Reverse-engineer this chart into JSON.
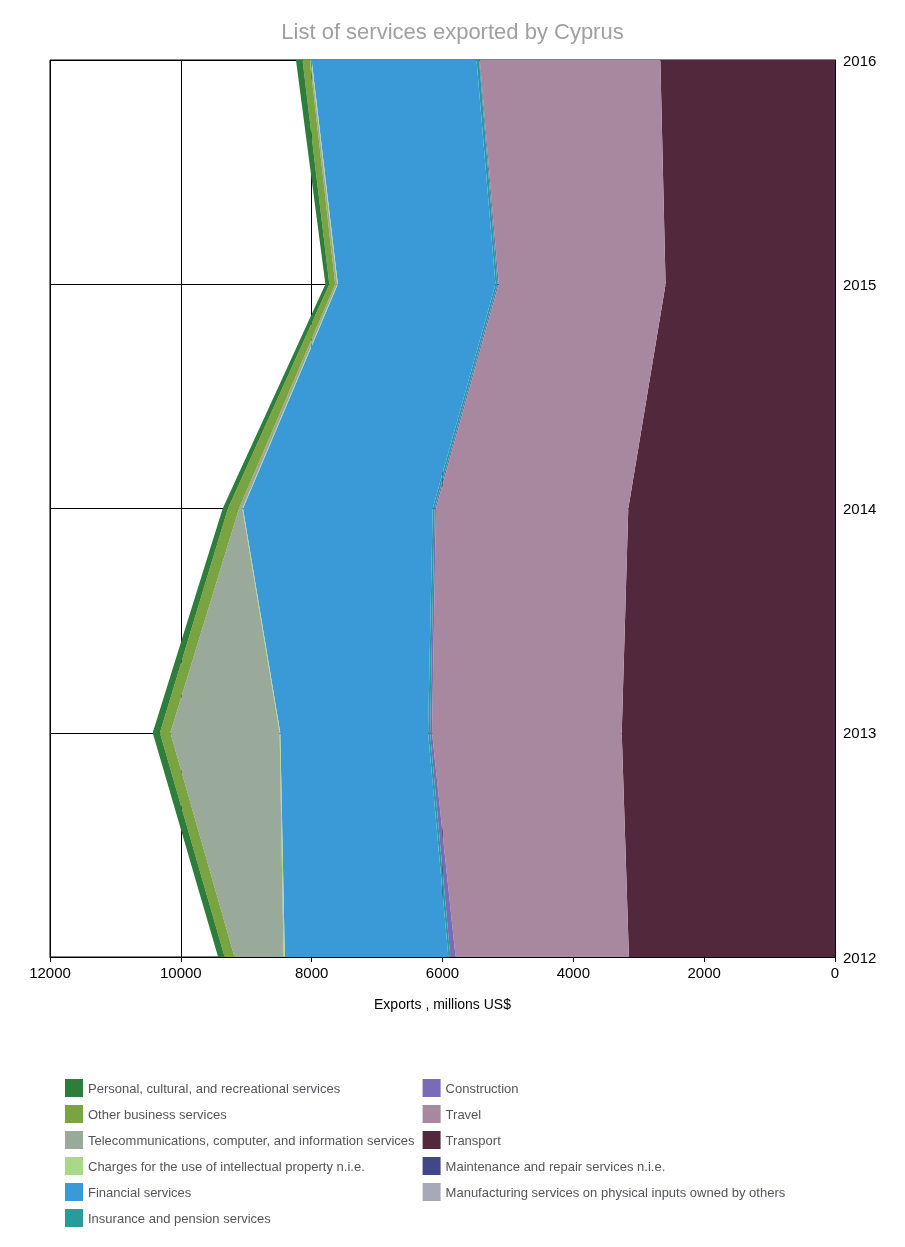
{
  "chart_data": {
    "type": "area",
    "title": "List of services exported by Cyprus",
    "xlabel": "Exports , millions US$",
    "stacked": true,
    "orientation": "horizontal",
    "categories": [
      "2016",
      "2015",
      "2014",
      "2013",
      "2012"
    ],
    "xlim": [
      12000,
      0
    ],
    "xticks": [
      0,
      2000,
      4000,
      6000,
      8000,
      10000,
      12000
    ],
    "grid": true,
    "legend": "bottom",
    "series": [
      {
        "name": "Manufacturing services on physical inputs owned by others",
        "color": "#a8a8b8",
        "values": [
          null,
          null,
          null,
          null,
          null
        ]
      },
      {
        "name": "Maintenance and repair services n.i.e.",
        "color": "#404888",
        "values": [
          null,
          null,
          null,
          null,
          null
        ]
      },
      {
        "name": "Transport",
        "color": "#52283c",
        "values": [
          2670,
          2590,
          3160,
          3260,
          3150
        ]
      },
      {
        "name": "Travel",
        "color": "#a8889e",
        "values": [
          2760,
          2550,
          2940,
          2900,
          2650
        ]
      },
      {
        "name": "Construction",
        "color": "#7a6ab8",
        "values": [
          10,
          20,
          20,
          30,
          80
        ]
      },
      {
        "name": "Insurance and pension services",
        "color": "#2a9a9a",
        "values": [
          40,
          30,
          30,
          30,
          30
        ]
      },
      {
        "name": "Financial services",
        "color": "#3a9ad8",
        "values": [
          2520,
          2410,
          2900,
          2260,
          2500
        ]
      },
      {
        "name": "Charges for the use of intellectual property n.i.e.",
        "color": "#a8d888",
        "values": [
          10,
          10,
          10,
          10,
          20
        ]
      },
      {
        "name": "Telecommunications, computer, and information services",
        "color": "#9aaa9a",
        "values": [
          20,
          30,
          50,
          1670,
          750
        ]
      },
      {
        "name": "Other business services",
        "color": "#7aa342",
        "values": [
          110,
          90,
          170,
          160,
          150
        ]
      },
      {
        "name": "Personal, cultural, and recreational services",
        "color": "#2e7d3a",
        "values": [
          100,
          60,
          80,
          110,
          100
        ]
      }
    ]
  }
}
